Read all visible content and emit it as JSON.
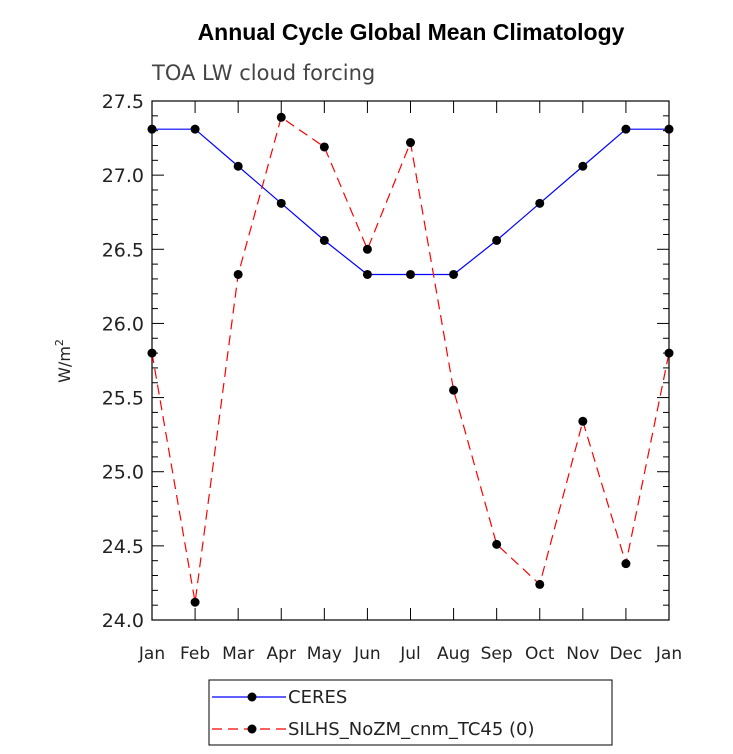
{
  "chart_data": {
    "type": "line",
    "title": "Annual Cycle Global Mean Climatology",
    "subtitle": "TOA LW cloud forcing",
    "ylabel": "W/m",
    "ylabel_superscript": "2",
    "xlabel": "",
    "categories": [
      "Jan",
      "Feb",
      "Mar",
      "Apr",
      "May",
      "Jun",
      "Jul",
      "Aug",
      "Sep",
      "Oct",
      "Nov",
      "Dec",
      "Jan"
    ],
    "ylim": [
      24.0,
      27.5
    ],
    "yticks": [
      "24.0",
      "24.5",
      "25.0",
      "25.5",
      "26.0",
      "26.5",
      "27.0",
      "27.5"
    ],
    "series": [
      {
        "name": "CERES",
        "color": "#0000ff",
        "dash": "solid",
        "values": [
          27.31,
          27.31,
          27.06,
          26.81,
          26.56,
          26.33,
          26.33,
          26.33,
          26.56,
          26.81,
          27.06,
          27.31,
          27.31
        ]
      },
      {
        "name": "SILHS_NoZM_cnm_TC45 (0)",
        "color": "#ff0000",
        "dash": "dashed",
        "values": [
          25.8,
          24.12,
          26.33,
          27.39,
          27.19,
          26.5,
          27.22,
          25.55,
          24.51,
          24.24,
          25.34,
          24.38,
          25.8
        ]
      }
    ],
    "legend_position": "bottom"
  }
}
